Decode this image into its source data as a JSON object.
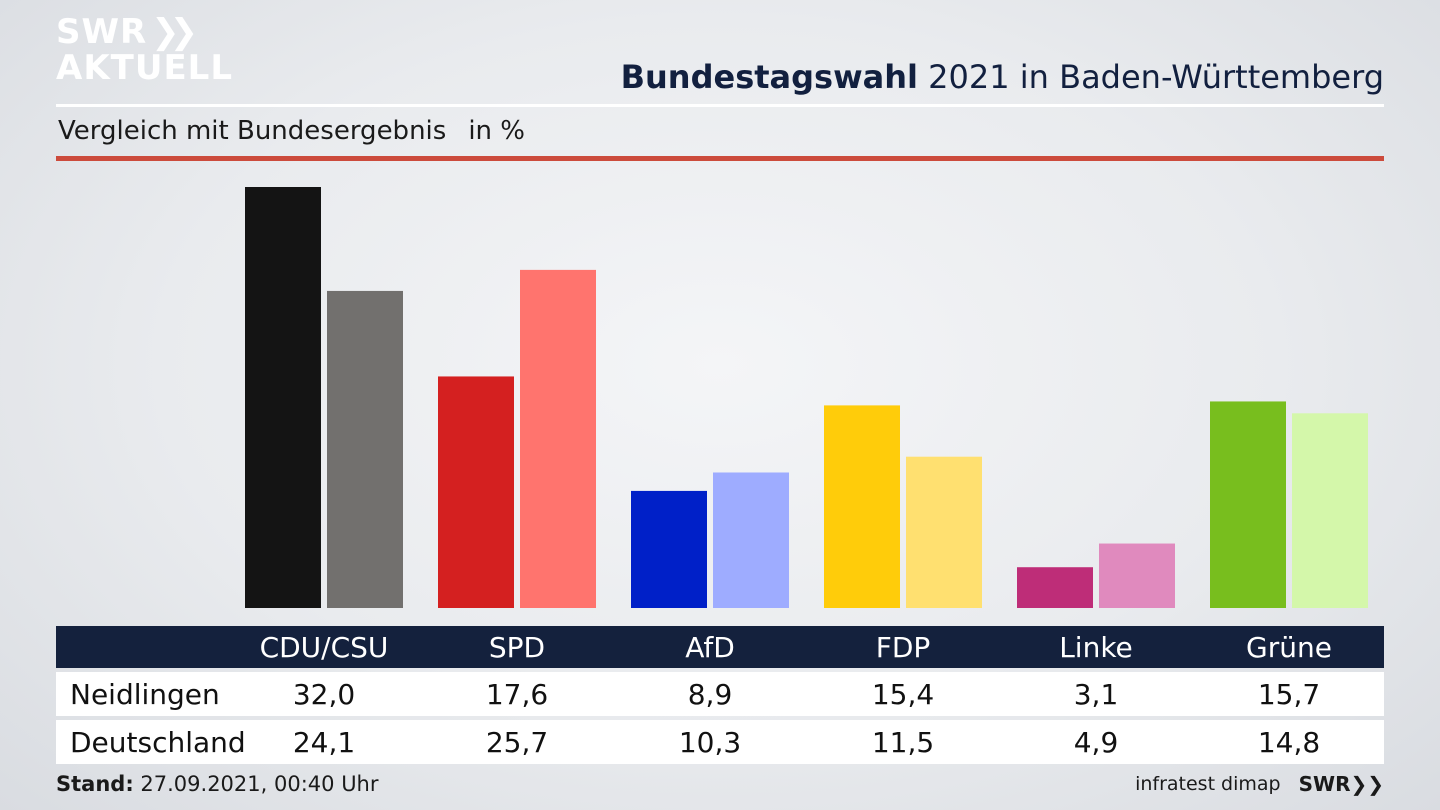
{
  "logo": {
    "line1": "SWR",
    "line2": "AKTUELL"
  },
  "header": {
    "title_bold": "Bundestagswahl",
    "title_rest": "2021 in Baden-Württemberg",
    "subtitle": "Vergleich mit Bundesergebnis",
    "unit": "in %"
  },
  "chart_data": {
    "type": "bar",
    "categories": [
      "CDU/CSU",
      "SPD",
      "AfD",
      "FDP",
      "Linke",
      "Grüne"
    ],
    "series": [
      {
        "name": "Neidlingen",
        "values": [
          32.0,
          17.6,
          8.9,
          15.4,
          3.1,
          15.7
        ],
        "labels": [
          "32,0",
          "17,6",
          "8,9",
          "15,4",
          "3,1",
          "15,7"
        ]
      },
      {
        "name": "Deutschland",
        "values": [
          24.1,
          25.7,
          10.3,
          11.5,
          4.9,
          14.8
        ],
        "labels": [
          "24,1",
          "25,7",
          "10,3",
          "11,5",
          "4,9",
          "14,8"
        ]
      }
    ],
    "colors": {
      "Neidlingen": [
        "#141414",
        "#d42020",
        "#0020c8",
        "#ffcc0a",
        "#be2d78",
        "#78be1e"
      ],
      "Deutschland": [
        "#72706e",
        "#ff746e",
        "#9eacff",
        "#ffe070",
        "#e08abe",
        "#d4f7aa"
      ]
    },
    "ylim": [
      0,
      32.0
    ]
  },
  "footer": {
    "stand_label": "Stand:",
    "stand_value": "27.09.2021, 00:40 Uhr",
    "source": "infratest dimap",
    "brand": "SWR"
  }
}
